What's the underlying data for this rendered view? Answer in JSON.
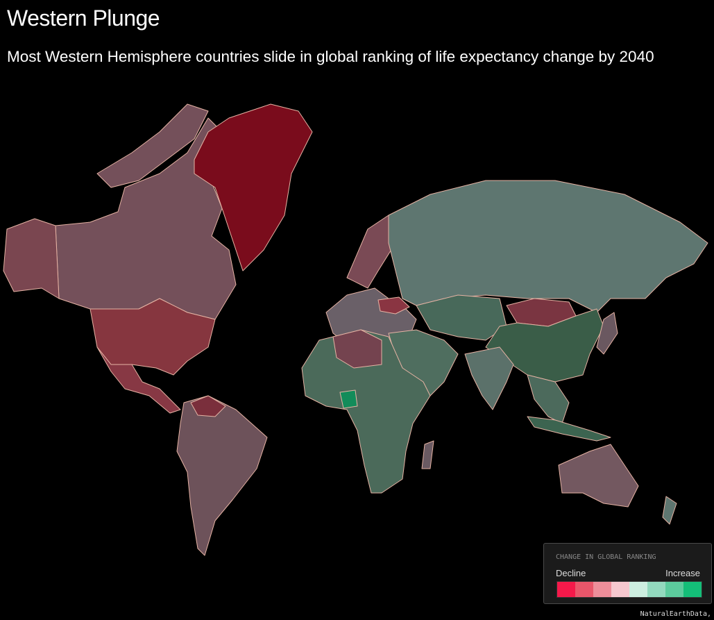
{
  "header": {
    "title": "Western Plunge",
    "subtitle": "Most Western Hemisphere countries slide in global ranking of life expectancy change by 2040"
  },
  "legend": {
    "title": "CHANGE IN GLOBAL RANKING",
    "low_label": "Decline",
    "high_label": "Increase",
    "colors": [
      "#f5194a",
      "#e9566a",
      "#ee8e9a",
      "#f6c8cf",
      "#cdeee0",
      "#93d9be",
      "#5ccb9d",
      "#14be78"
    ]
  },
  "credit": "NaturalEarthData,"
}
